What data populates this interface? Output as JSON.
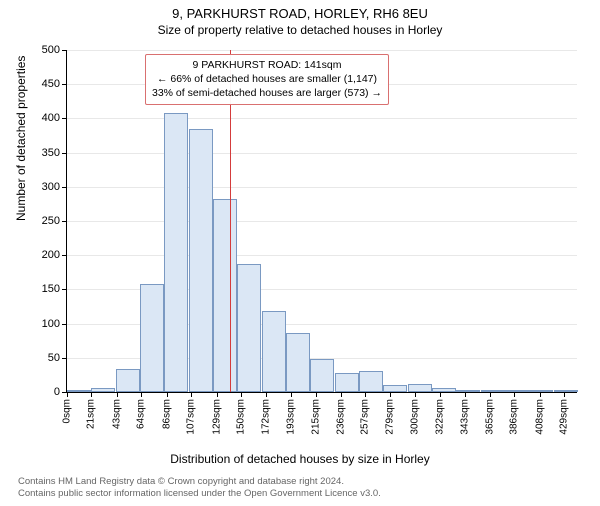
{
  "title_main": "9, PARKHURST ROAD, HORLEY, RH6 8EU",
  "title_sub": "Size of property relative to detached houses in Horley",
  "y_axis_title": "Number of detached properties",
  "x_axis_title": "Distribution of detached houses by size in Horley",
  "chart": {
    "ylim_max": 500,
    "y_ticks": [
      0,
      50,
      100,
      150,
      200,
      250,
      300,
      350,
      400,
      450,
      500
    ],
    "x_ticks": [
      0,
      21,
      43,
      64,
      86,
      107,
      129,
      150,
      172,
      193,
      215,
      236,
      257,
      279,
      300,
      322,
      343,
      365,
      386,
      408,
      429
    ],
    "x_tick_unit": "sqm",
    "x_max": 440,
    "bar_fill": "#dbe7f5",
    "bar_stroke": "#7a99c2",
    "grid_color": "#e8e8e8",
    "marker_color": "#d43c3c",
    "marker_x": 141,
    "bin_width": 21,
    "values": [
      2,
      6,
      33,
      158,
      408,
      384,
      282,
      187,
      118,
      86,
      48,
      28,
      30,
      10,
      12,
      6,
      3,
      0,
      3,
      2,
      2
    ]
  },
  "annotation": {
    "line1": "9 PARKHURST ROAD: 141sqm",
    "line2": "← 66% of detached houses are smaller (1,147)",
    "line3": "33% of semi-detached houses are larger (573) →",
    "border_color": "#d97070"
  },
  "footnote_line1": "Contains HM Land Registry data © Crown copyright and database right 2024.",
  "footnote_line2": "Contains public sector information licensed under the Open Government Licence v3.0."
}
